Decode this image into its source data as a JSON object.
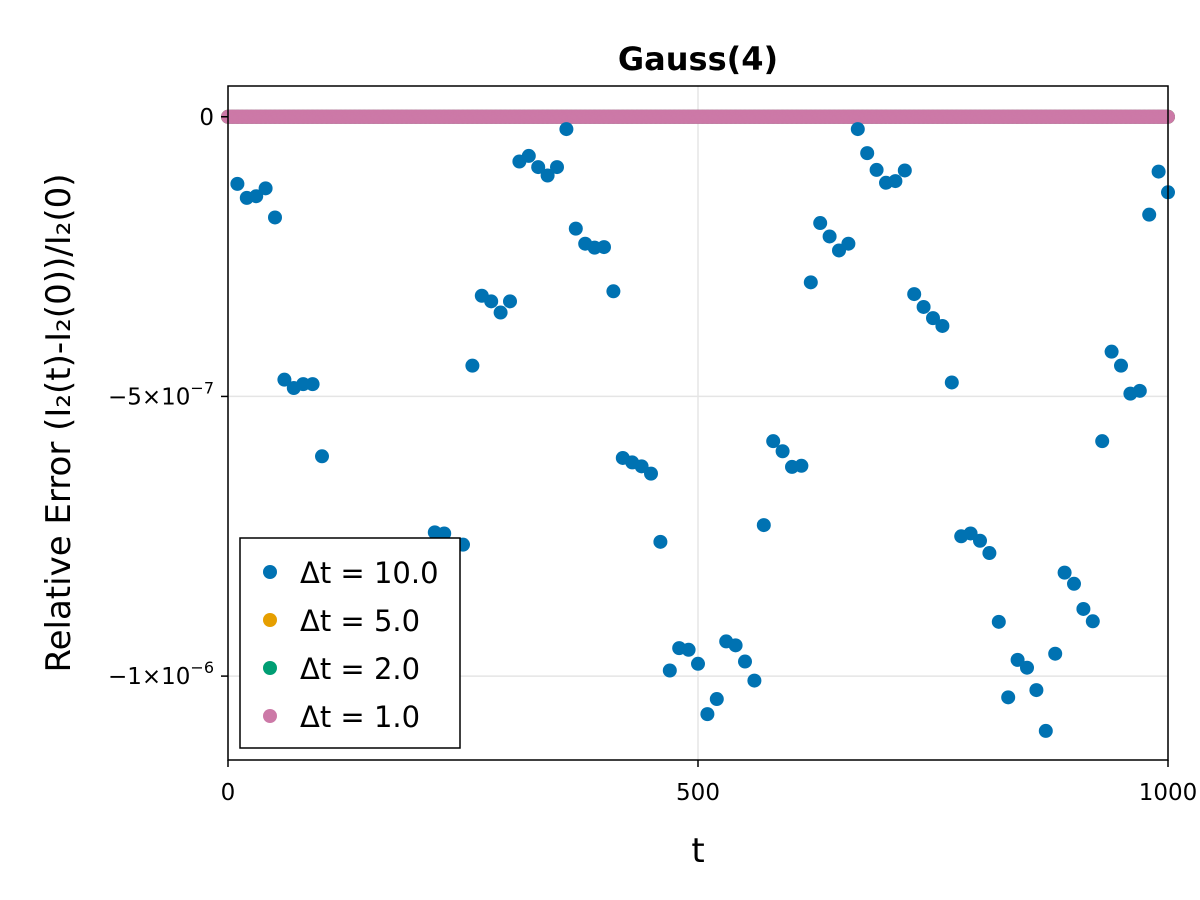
{
  "chart_data": {
    "type": "scatter",
    "title": "Gauss(4)",
    "xlabel": "t",
    "ylabel": "Relative Error (I₂(t)-I₂(0))/I₂(0)",
    "xlim": [
      0,
      1000
    ],
    "ylim": [
      -1.15e-06,
      5.5e-08
    ],
    "x_ticks": [
      {
        "value": 0,
        "label": "0"
      },
      {
        "value": 500,
        "label": "500"
      },
      {
        "value": 1000,
        "label": "1000"
      }
    ],
    "y_ticks": [
      {
        "value": 0,
        "label": "0",
        "mantissa": "",
        "exponent": ""
      },
      {
        "value": -5e-07,
        "label": "−5×10⁻⁷",
        "mantissa": "−5×10",
        "exponent": "−7"
      },
      {
        "value": -1e-06,
        "label": "−1×10⁻⁶",
        "mantissa": "−1×10",
        "exponent": "−6"
      }
    ],
    "grid": true,
    "legend_position": "bottom-left",
    "series": [
      {
        "name": "Δt = 10.0",
        "color": "#0072b2",
        "x": [
          10,
          20,
          30,
          40,
          50,
          60,
          70,
          80,
          90,
          100,
          220,
          230,
          250,
          260,
          270,
          280,
          290,
          300,
          310,
          320,
          330,
          340,
          350,
          360,
          370,
          380,
          390,
          400,
          410,
          420,
          430,
          440,
          450,
          460,
          470,
          480,
          490,
          500,
          510,
          520,
          530,
          540,
          550,
          560,
          570,
          580,
          590,
          600,
          610,
          620,
          630,
          640,
          650,
          660,
          670,
          680,
          690,
          700,
          710,
          720,
          730,
          740,
          750,
          760,
          770,
          780,
          790,
          800,
          810,
          820,
          830,
          840,
          850,
          860,
          870,
          880,
          890,
          900,
          910,
          920,
          930,
          940,
          950,
          960,
          970,
          980,
          990,
          1000
        ],
        "y": [
          -1.2e-07,
          -1.45e-07,
          -1.42e-07,
          -1.28e-07,
          -1.8e-07,
          -4.7e-07,
          -4.85e-07,
          -4.78e-07,
          -4.78e-07,
          -6.07e-07,
          -7.43e-07,
          -7.45e-07,
          -7.65e-07,
          -4.45e-07,
          -3.2e-07,
          -3.3e-07,
          -3.5e-07,
          -3.3e-07,
          -8e-08,
          -7e-08,
          -9e-08,
          -1.05e-07,
          -9e-08,
          -2.2e-08,
          -2e-07,
          -2.27e-07,
          -2.34e-07,
          -2.33e-07,
          -3.12e-07,
          -6.1e-07,
          -6.18e-07,
          -6.25e-07,
          -6.38e-07,
          -7.6e-07,
          -9.9e-07,
          -9.5e-07,
          -9.53e-07,
          -9.78e-07,
          -1.068e-06,
          -1.041e-06,
          -9.38e-07,
          -9.45e-07,
          -9.74e-07,
          -1.008e-06,
          -7.3e-07,
          -5.8e-07,
          -5.98e-07,
          -6.26e-07,
          -6.24e-07,
          -2.96e-07,
          -1.9e-07,
          -2.14e-07,
          -2.39e-07,
          -2.27e-07,
          -2.2e-08,
          -6.5e-08,
          -9.5e-08,
          -1.18e-07,
          -1.15e-07,
          -9.6e-08,
          -3.17e-07,
          -3.4e-07,
          -3.6e-07,
          -3.74e-07,
          -4.75e-07,
          -7.5e-07,
          -7.45e-07,
          -7.58e-07,
          -7.8e-07,
          -9.03e-07,
          -1.038e-06,
          -9.71e-07,
          -9.85e-07,
          -1.025e-06,
          -1.098e-06,
          -9.6e-07,
          -8.15e-07,
          -8.35e-07,
          -8.8e-07,
          -9.02e-07,
          -5.8e-07,
          -4.2e-07,
          -4.45e-07,
          -4.95e-07,
          -4.9e-07,
          -1.75e-07,
          -9.8e-08,
          -1.35e-07
        ]
      },
      {
        "name": "Δt = 5.0",
        "color": "#e69f00",
        "x": [
          0,
          1000
        ],
        "y": [
          0,
          0
        ],
        "dense_step": 5
      },
      {
        "name": "Δt = 2.0",
        "color": "#009e73",
        "x": [
          0,
          1000
        ],
        "y": [
          0,
          0
        ],
        "dense_step": 2
      },
      {
        "name": "Δt = 1.0",
        "color": "#cc79a7",
        "x": [
          0,
          1000
        ],
        "y": [
          0,
          0
        ],
        "dense_step": 1
      }
    ]
  }
}
